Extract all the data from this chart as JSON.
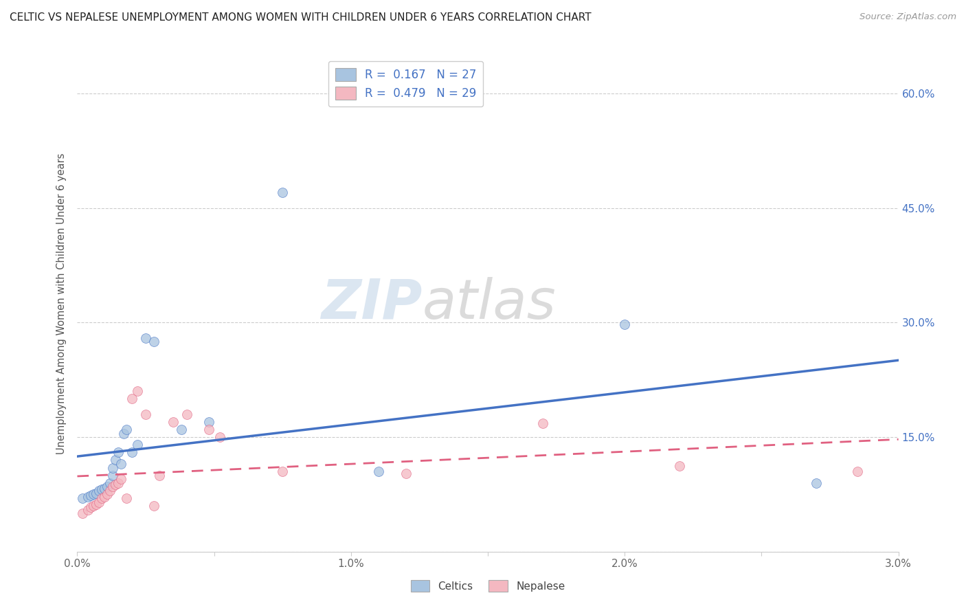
{
  "title": "CELTIC VS NEPALESE UNEMPLOYMENT AMONG WOMEN WITH CHILDREN UNDER 6 YEARS CORRELATION CHART",
  "source": "Source: ZipAtlas.com",
  "ylabel": "Unemployment Among Women with Children Under 6 years",
  "xlabel": "",
  "xlim": [
    0.0,
    0.03
  ],
  "ylim": [
    0.0,
    0.65
  ],
  "xticks": [
    0.0,
    0.005,
    0.01,
    0.015,
    0.02,
    0.025,
    0.03
  ],
  "xtick_labels": [
    "0.0%",
    "",
    "1.0%",
    "",
    "2.0%",
    "",
    "3.0%"
  ],
  "yticks": [
    0.0,
    0.15,
    0.3,
    0.45,
    0.6
  ],
  "ytick_labels": [
    "",
    "15.0%",
    "30.0%",
    "45.0%",
    "60.0%"
  ],
  "celtics_R": 0.167,
  "celtics_N": 27,
  "nepalese_R": 0.479,
  "nepalese_N": 29,
  "celtics_color": "#a8c4e0",
  "nepalese_color": "#f4b8c1",
  "celtics_line_color": "#4472c4",
  "nepalese_line_color": "#e06080",
  "background_color": "#ffffff",
  "watermark_zip": "ZIP",
  "watermark_atlas": "atlas",
  "legend_text_color": "#4472c4",
  "grid_color": "#cccccc",
  "celtics_x": [
    0.0002,
    0.0004,
    0.0005,
    0.0006,
    0.0007,
    0.0008,
    0.0009,
    0.001,
    0.0011,
    0.0012,
    0.0013,
    0.0013,
    0.0014,
    0.0015,
    0.0016,
    0.0017,
    0.0018,
    0.002,
    0.0022,
    0.0025,
    0.0028,
    0.0038,
    0.0048,
    0.0075,
    0.011,
    0.02,
    0.027
  ],
  "celtics_y": [
    0.07,
    0.072,
    0.074,
    0.075,
    0.076,
    0.08,
    0.082,
    0.083,
    0.085,
    0.09,
    0.1,
    0.11,
    0.12,
    0.13,
    0.115,
    0.155,
    0.16,
    0.13,
    0.14,
    0.28,
    0.275,
    0.16,
    0.17,
    0.47,
    0.105,
    0.298,
    0.09
  ],
  "nepalese_x": [
    0.0002,
    0.0004,
    0.0005,
    0.0006,
    0.0007,
    0.0008,
    0.0009,
    0.001,
    0.0011,
    0.0012,
    0.0013,
    0.0014,
    0.0015,
    0.0016,
    0.0018,
    0.002,
    0.0022,
    0.0025,
    0.0028,
    0.003,
    0.0035,
    0.004,
    0.0048,
    0.0052,
    0.0075,
    0.012,
    0.017,
    0.022,
    0.0285
  ],
  "nepalese_y": [
    0.05,
    0.055,
    0.058,
    0.06,
    0.062,
    0.065,
    0.07,
    0.072,
    0.075,
    0.08,
    0.085,
    0.088,
    0.09,
    0.095,
    0.07,
    0.2,
    0.21,
    0.18,
    0.06,
    0.1,
    0.17,
    0.18,
    0.16,
    0.15,
    0.105,
    0.102,
    0.168,
    0.112,
    0.105
  ]
}
